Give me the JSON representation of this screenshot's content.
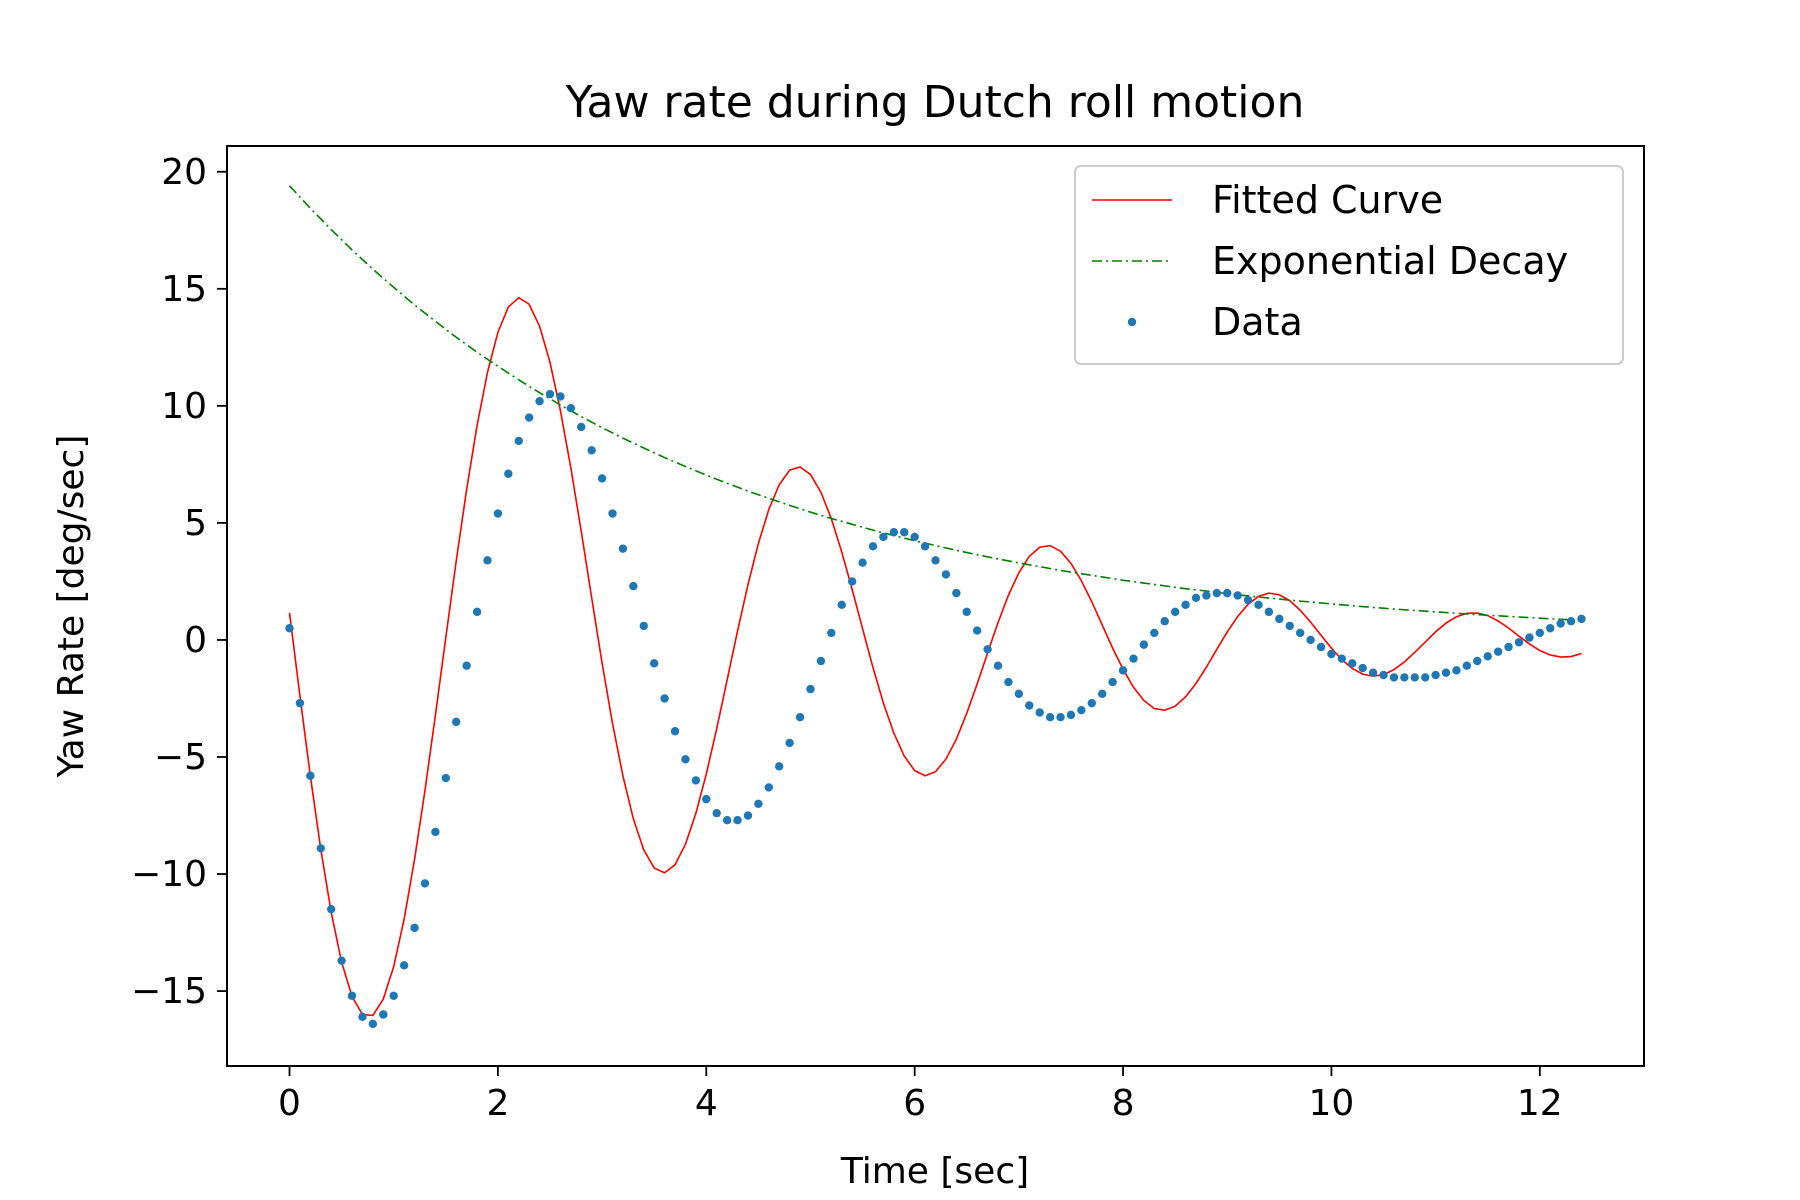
{
  "chart_data": {
    "type": "line",
    "title": "Yaw rate during Dutch roll motion",
    "xlabel": "Time [sec]",
    "ylabel": "Yaw Rate [deg/sec]",
    "xlim": [
      -0.6,
      13.0
    ],
    "ylim": [
      -18.2,
      21.1
    ],
    "xticks": [
      0,
      2,
      4,
      6,
      8,
      10,
      12
    ],
    "xtick_labels": [
      "0",
      "2",
      "4",
      "6",
      "8",
      "10",
      "12"
    ],
    "yticks": [
      -15,
      -10,
      -5,
      0,
      5,
      10,
      15,
      20
    ],
    "ytick_labels": [
      "−15",
      "−10",
      "−5",
      "0",
      "5",
      "10",
      "15",
      "20"
    ],
    "grid": false,
    "legend_position": "upper right",
    "series": [
      {
        "name": "Fitted Curve",
        "kind": "line",
        "style": "solid",
        "color": "#ff0000",
        "x": [
          0.0,
          0.1,
          0.2,
          0.3,
          0.4,
          0.5,
          0.6,
          0.7,
          0.8,
          0.9,
          1.0,
          1.1,
          1.2,
          1.3,
          1.4,
          1.5,
          1.6,
          1.7,
          1.8,
          1.9,
          2.0,
          2.1,
          2.2,
          2.3,
          2.4,
          2.5,
          2.6,
          2.7,
          2.8,
          2.9,
          3.0,
          3.1,
          3.2,
          3.3,
          3.4,
          3.5,
          3.6,
          3.7,
          3.8,
          3.9,
          4.0,
          4.1,
          4.2,
          4.3,
          4.4,
          4.5,
          4.6,
          4.7,
          4.8,
          4.9,
          5.0,
          5.1,
          5.2,
          5.3,
          5.4,
          5.5,
          5.6,
          5.7,
          5.8,
          5.9,
          6.0,
          6.1,
          6.2,
          6.3,
          6.4,
          6.5,
          6.6,
          6.7,
          6.8,
          6.9,
          7.0,
          7.1,
          7.2,
          7.3,
          7.4,
          7.5,
          7.6,
          7.7,
          7.8,
          7.9,
          8.0,
          8.1,
          8.2,
          8.3,
          8.4,
          8.5,
          8.6,
          8.7,
          8.8,
          8.9,
          9.0,
          9.1,
          9.2,
          9.3,
          9.4,
          9.5,
          9.6,
          9.7,
          9.8,
          9.9,
          10.0,
          10.1,
          10.2,
          10.3,
          10.4,
          10.5,
          10.6,
          10.7,
          10.8,
          10.9,
          11.0,
          11.1,
          11.2,
          11.3,
          11.4,
          11.5,
          11.6,
          11.7,
          11.8,
          11.9,
          12.0,
          12.1,
          12.2,
          12.3,
          12.4
        ],
        "y": [
          1.16,
          -2.39,
          -5.81,
          -8.94,
          -11.63,
          -13.76,
          -15.23,
          -16.0,
          -16.04,
          -15.34,
          -13.95,
          -11.93,
          -9.38,
          -6.43,
          -3.22,
          0.1,
          3.37,
          6.43,
          9.16,
          11.43,
          13.14,
          14.22,
          14.62,
          14.34,
          13.4,
          11.86,
          9.8,
          7.35,
          4.64,
          1.8,
          -0.99,
          -3.57,
          -5.81,
          -7.64,
          -8.97,
          -9.74,
          -9.95,
          -9.6,
          -8.73,
          -7.41,
          -5.73,
          -3.79,
          -1.71,
          0.38,
          2.36,
          4.12,
          5.57,
          6.63,
          7.25,
          7.39,
          7.07,
          6.31,
          5.18,
          3.76,
          2.16,
          0.48,
          -1.18,
          -2.7,
          -3.98,
          -4.96,
          -5.58,
          -5.8,
          -5.63,
          -5.09,
          -4.24,
          -3.13,
          -1.88,
          -0.55,
          0.74,
          1.91,
          2.87,
          3.57,
          3.96,
          4.03,
          3.79,
          3.27,
          2.53,
          1.63,
          0.64,
          -0.35,
          -1.25,
          -2.02,
          -2.59,
          -2.93,
          -3.0,
          -2.83,
          -2.43,
          -1.86,
          -1.16,
          -0.4,
          0.34,
          1.0,
          1.52,
          1.86,
          2.0,
          1.93,
          1.68,
          1.27,
          0.76,
          0.2,
          -0.35,
          -0.84,
          -1.22,
          -1.46,
          -1.55,
          -1.48,
          -1.27,
          -0.94,
          -0.53,
          -0.09,
          0.35,
          0.72,
          0.99,
          1.14,
          1.15,
          1.04,
          0.81,
          0.51,
          0.16,
          -0.17,
          -0.45,
          -0.64,
          -0.73,
          -0.71,
          -0.58
        ]
      },
      {
        "name": "Exponential Decay",
        "kind": "line",
        "style": "dashdot",
        "color": "#008000",
        "x": [
          0.0,
          0.2,
          0.4,
          0.6,
          0.8,
          1.0,
          1.2,
          1.4,
          1.6,
          1.8,
          2.0,
          2.2,
          2.4,
          2.6,
          2.8,
          3.0,
          3.2,
          3.4,
          3.6,
          3.8,
          4.0,
          4.2,
          4.4,
          4.6,
          4.8,
          5.0,
          5.2,
          5.4,
          5.6,
          5.8,
          6.0,
          6.2,
          6.4,
          6.6,
          6.8,
          7.0,
          7.2,
          7.4,
          7.6,
          7.8,
          8.0,
          8.2,
          8.4,
          8.6,
          8.8,
          9.0,
          9.2,
          9.4,
          9.6,
          9.8,
          10.0,
          10.2,
          10.4,
          10.6,
          10.8,
          11.0,
          11.2,
          11.4,
          11.6,
          11.8,
          12.0,
          12.2,
          12.4
        ],
        "y": [
          19.4,
          18.44,
          17.53,
          16.66,
          15.84,
          15.06,
          14.31,
          13.61,
          12.93,
          12.29,
          11.69,
          11.11,
          10.56,
          10.04,
          9.54,
          9.07,
          8.62,
          8.2,
          7.79,
          7.41,
          7.04,
          6.69,
          6.36,
          6.05,
          5.75,
          5.46,
          5.19,
          4.94,
          4.69,
          4.46,
          4.24,
          4.03,
          3.83,
          3.64,
          3.46,
          3.29,
          3.13,
          2.97,
          2.83,
          2.69,
          2.55,
          2.43,
          2.31,
          2.19,
          2.09,
          1.98,
          1.88,
          1.79,
          1.7,
          1.62,
          1.54,
          1.46,
          1.39,
          1.32,
          1.26,
          1.2,
          1.14,
          1.08,
          1.03,
          0.98,
          0.93,
          0.88,
          0.84
        ]
      },
      {
        "name": "Data",
        "kind": "scatter",
        "color": "#1f77b4",
        "x": [
          0.0,
          0.1,
          0.2,
          0.3,
          0.4,
          0.5,
          0.6,
          0.7,
          0.8,
          0.9,
          1.0,
          1.1,
          1.2,
          1.3,
          1.4,
          1.5,
          1.6,
          1.7,
          1.8,
          1.9,
          2.0,
          2.1,
          2.2,
          2.3,
          2.4,
          2.5,
          2.6,
          2.7,
          2.8,
          2.9,
          3.0,
          3.1,
          3.2,
          3.3,
          3.4,
          3.5,
          3.6,
          3.7,
          3.8,
          3.9,
          4.0,
          4.1,
          4.2,
          4.3,
          4.4,
          4.5,
          4.6,
          4.7,
          4.8,
          4.9,
          5.0,
          5.1,
          5.2,
          5.3,
          5.4,
          5.5,
          5.6,
          5.7,
          5.8,
          5.9,
          6.0,
          6.1,
          6.2,
          6.3,
          6.4,
          6.5,
          6.6,
          6.7,
          6.8,
          6.9,
          7.0,
          7.1,
          7.2,
          7.3,
          7.4,
          7.5,
          7.6,
          7.7,
          7.8,
          7.9,
          8.0,
          8.1,
          8.2,
          8.3,
          8.4,
          8.5,
          8.6,
          8.7,
          8.8,
          8.9,
          9.0,
          9.1,
          9.2,
          9.3,
          9.4,
          9.5,
          9.6,
          9.7,
          9.8,
          9.9,
          10.0,
          10.1,
          10.2,
          10.3,
          10.4,
          10.5,
          10.6,
          10.7,
          10.8,
          10.9,
          11.0,
          11.1,
          11.2,
          11.3,
          11.4,
          11.5,
          11.6,
          11.7,
          11.8,
          11.9,
          12.0,
          12.1,
          12.2,
          12.3,
          12.4
        ],
        "y": [
          0.5,
          -2.7,
          -5.8,
          -8.9,
          -11.5,
          -13.7,
          -15.2,
          -16.1,
          -16.4,
          -16.0,
          -15.2,
          -13.9,
          -12.3,
          -10.4,
          -8.2,
          -5.9,
          -3.5,
          -1.1,
          1.2,
          3.4,
          5.4,
          7.1,
          8.5,
          9.5,
          10.2,
          10.5,
          10.4,
          9.9,
          9.1,
          8.1,
          6.9,
          5.4,
          3.9,
          2.3,
          0.6,
          -1.0,
          -2.5,
          -3.9,
          -5.1,
          -6.0,
          -6.8,
          -7.4,
          -7.7,
          -7.7,
          -7.5,
          -7.0,
          -6.3,
          -5.4,
          -4.4,
          -3.3,
          -2.1,
          -0.9,
          0.3,
          1.5,
          2.5,
          3.3,
          4.0,
          4.4,
          4.6,
          4.6,
          4.4,
          4.0,
          3.4,
          2.8,
          2.0,
          1.2,
          0.4,
          -0.4,
          -1.1,
          -1.8,
          -2.3,
          -2.8,
          -3.1,
          -3.3,
          -3.3,
          -3.2,
          -3.0,
          -2.7,
          -2.3,
          -1.8,
          -1.3,
          -0.8,
          -0.2,
          0.3,
          0.8,
          1.2,
          1.5,
          1.8,
          1.9,
          2.0,
          2.0,
          1.9,
          1.7,
          1.5,
          1.2,
          0.9,
          0.6,
          0.3,
          0.0,
          -0.3,
          -0.6,
          -0.8,
          -1.0,
          -1.2,
          -1.4,
          -1.5,
          -1.6,
          -1.6,
          -1.6,
          -1.6,
          -1.5,
          -1.4,
          -1.3,
          -1.1,
          -0.9,
          -0.7,
          -0.5,
          -0.3,
          -0.1,
          0.1,
          0.3,
          0.5,
          0.7,
          0.8,
          0.9
        ]
      }
    ]
  }
}
